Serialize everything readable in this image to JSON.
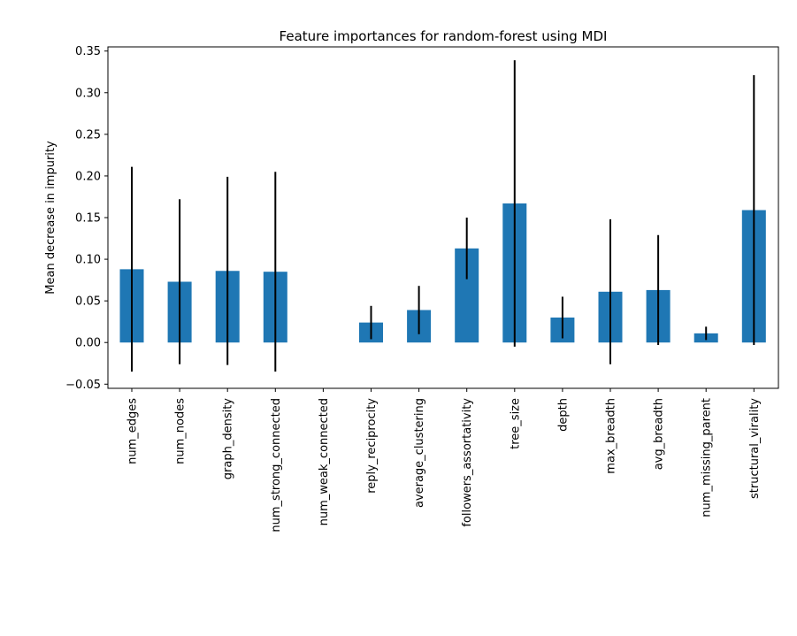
{
  "chart_data": {
    "type": "bar",
    "title": "Feature importances for random-forest using MDI",
    "xlabel": "",
    "ylabel": "Mean decrease in impurity",
    "ylim": [
      -0.055,
      0.355
    ],
    "yticks": [
      -0.05,
      0.0,
      0.05,
      0.1,
      0.15,
      0.2,
      0.25,
      0.3,
      0.35
    ],
    "ytick_labels": [
      "−0.05",
      "0.00",
      "0.05",
      "0.10",
      "0.15",
      "0.20",
      "0.25",
      "0.30",
      "0.35"
    ],
    "grid": false,
    "legend": "none",
    "categories": [
      "num_edges",
      "num_nodes",
      "graph_density",
      "num_strong_connected",
      "num_weak_connected",
      "reply_reciprocity",
      "average_clustering",
      "followers_assortativity",
      "tree_size",
      "depth",
      "max_breadth",
      "avg_breadth",
      "num_missing_parent",
      "structural_virality"
    ],
    "values": [
      0.088,
      0.073,
      0.086,
      0.085,
      0.0,
      0.024,
      0.039,
      0.113,
      0.167,
      0.03,
      0.061,
      0.063,
      0.011,
      0.159
    ],
    "errors": [
      0.123,
      0.099,
      0.113,
      0.12,
      0.0,
      0.02,
      0.029,
      0.037,
      0.172,
      0.025,
      0.087,
      0.066,
      0.008,
      0.162
    ],
    "bar_color": "#1f77b4",
    "error_color": "#000000"
  }
}
